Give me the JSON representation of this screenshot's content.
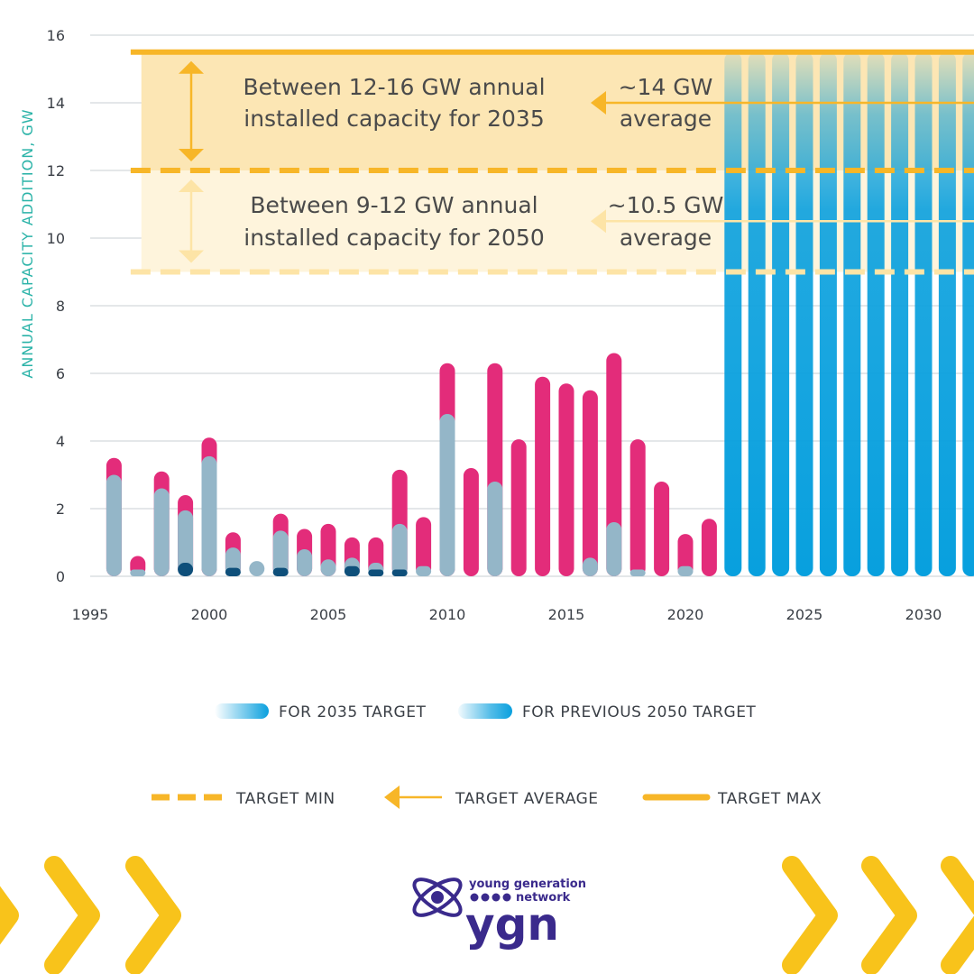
{
  "chart_data": {
    "type": "bar",
    "stacked": true,
    "ylabel": "ANNUAL CAPACITY ADDITION, GW",
    "xlabel": "",
    "ylim": [
      0,
      16
    ],
    "xlim": [
      1995,
      2032.3
    ],
    "y_ticks": [
      "0",
      "2",
      "4",
      "6",
      "8",
      "10",
      "12",
      "14",
      "16"
    ],
    "x_ticks": [
      "1995",
      "2000",
      "2005",
      "2010",
      "2015",
      "2020",
      "2025",
      "2030"
    ],
    "grid": true,
    "series_colors": {
      "dark": "#0e4f7a",
      "grey": "#94b6c8",
      "pink": "#e32c7a",
      "blue": "#0aa0de"
    },
    "historical": [
      {
        "year": 1996,
        "dark": 0,
        "grey": 3.0,
        "pink": 0.5
      },
      {
        "year": 1997,
        "dark": 0,
        "grey": 0.2,
        "pink": 0.4
      },
      {
        "year": 1998,
        "dark": 0,
        "grey": 2.6,
        "pink": 0.5
      },
      {
        "year": 1999,
        "dark": 0.4,
        "grey": 1.55,
        "pink": 0.45
      },
      {
        "year": 2000,
        "dark": 0,
        "grey": 3.55,
        "pink": 0.55
      },
      {
        "year": 2001,
        "dark": 0.25,
        "grey": 0.6,
        "pink": 0.45
      },
      {
        "year": 2002,
        "dark": 0,
        "grey": 0.45,
        "pink": 0
      },
      {
        "year": 2003,
        "dark": 0.25,
        "grey": 1.1,
        "pink": 0.5
      },
      {
        "year": 2004,
        "dark": 0,
        "grey": 0.8,
        "pink": 0.6
      },
      {
        "year": 2005,
        "dark": 0,
        "grey": 0.5,
        "pink": 1.05
      },
      {
        "year": 2006,
        "dark": 0.3,
        "grey": 0.25,
        "pink": 0.6
      },
      {
        "year": 2007,
        "dark": 0.2,
        "grey": 0.2,
        "pink": 0.75
      },
      {
        "year": 2008,
        "dark": 0.2,
        "grey": 1.35,
        "pink": 1.6
      },
      {
        "year": 2009,
        "dark": 0,
        "grey": 0.3,
        "pink": 1.45
      },
      {
        "year": 2010,
        "dark": 0,
        "grey": 4.8,
        "pink": 1.5
      },
      {
        "year": 2011,
        "dark": 0,
        "grey": 0,
        "pink": 3.2
      },
      {
        "year": 2012,
        "dark": 0,
        "grey": 2.8,
        "pink": 3.5
      },
      {
        "year": 2013,
        "dark": 0,
        "grey": 0,
        "pink": 4.05
      },
      {
        "year": 2014,
        "dark": 0,
        "grey": 0,
        "pink": 5.9
      },
      {
        "year": 2015,
        "dark": 0,
        "grey": 0,
        "pink": 5.7
      },
      {
        "year": 2016,
        "dark": 0,
        "grey": 0.55,
        "pink": 4.95
      },
      {
        "year": 2017,
        "dark": 0,
        "grey": 1.6,
        "pink": 5.0
      },
      {
        "year": 2018,
        "dark": 0,
        "grey": 0.2,
        "pink": 3.85
      },
      {
        "year": 2019,
        "dark": 0,
        "grey": 0,
        "pink": 2.8
      },
      {
        "year": 2020,
        "dark": 0,
        "grey": 0.3,
        "pink": 0.95
      },
      {
        "year": 2021,
        "dark": 0,
        "grey": 0,
        "pink": 1.7
      }
    ],
    "target_years": [
      2022,
      2023,
      2024,
      2025,
      2026,
      2027,
      2028,
      2029,
      2030,
      2031,
      2032
    ],
    "target_2035_top": 15.5,
    "target_2050_top": 12.0,
    "lines": {
      "target_max_2035": 15.5,
      "target_min_2035": 12.0,
      "target_avg_2035": 14.0,
      "target_min_2050": 9.0,
      "target_avg_2050": 10.5
    },
    "annotations": {
      "band_2035": [
        "Between 12-16 GW annual",
        "installed capacity for 2035"
      ],
      "avg_2035": [
        "~14 GW",
        "average"
      ],
      "band_2050": [
        "Between 9-12 GW annual",
        "installed capacity for 2050"
      ],
      "avg_2050": [
        "~10.5 GW",
        "average"
      ]
    },
    "legend": {
      "for_2035": "FOR 2035 TARGET",
      "for_2050": "FOR PREVIOUS 2050 TARGET",
      "target_min": "TARGET MIN",
      "target_avg": "TARGET AVERAGE",
      "target_max": "TARGET MAX"
    },
    "colors": {
      "target_line": "#f7b628",
      "target_line_2050": "#fde4a6",
      "band_2035": "#fce6b4",
      "band_2050": "#fef4dc",
      "blue": "#0aa0de",
      "pink": "#e32c7a",
      "chevron": "#f8c31b",
      "brand": "#3a2a8c"
    }
  },
  "branding": {
    "line1": "young generation",
    "line2": "network",
    "logo_text": "ygn"
  }
}
